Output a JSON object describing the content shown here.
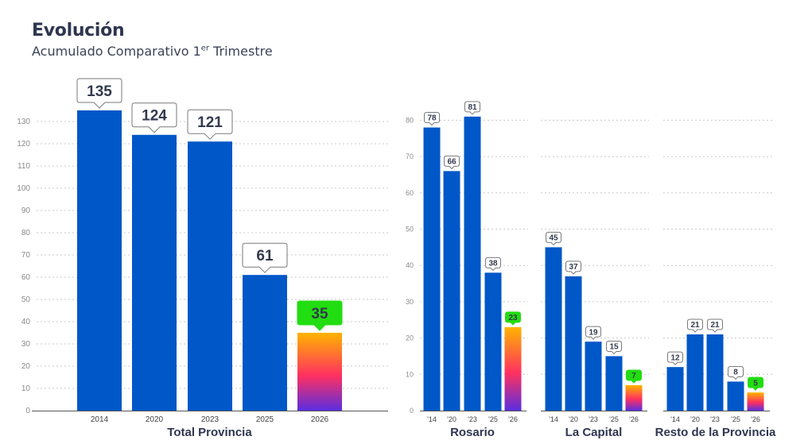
{
  "header": {
    "title": "Evolución",
    "subtitle_pre": "Acumulado Comparativo 1",
    "subtitle_sup": "er",
    "subtitle_post": " Trimestre"
  },
  "colors": {
    "bar": "#0057c8",
    "grid": "#c9c9c9",
    "axis": "#555555",
    "tick": "#8a8a8a",
    "label_border": "#7a7a7a",
    "label_text": "#333a4d",
    "highlight_label_bg": "#22dd11",
    "gradient_top": "#ffb400",
    "gradient_mid": "#ff3060",
    "gradient_bottom": "#5a2ee0"
  },
  "chart_data": [
    {
      "type": "bar",
      "id": "total",
      "xlabel": "Total Provincia",
      "categories": [
        "2014",
        "2020",
        "2023",
        "2025",
        "2026"
      ],
      "values": [
        135,
        124,
        121,
        61,
        35
      ],
      "ylim": [
        0,
        130
      ],
      "yticks": [
        0,
        10,
        20,
        30,
        40,
        50,
        60,
        70,
        80,
        90,
        100,
        110,
        120,
        130
      ],
      "highlight": "2026"
    },
    {
      "type": "bar",
      "id": "rosario",
      "xlabel": "Rosario",
      "categories": [
        "'14",
        "'20",
        "'23",
        "'25",
        "'26"
      ],
      "values": [
        78,
        66,
        81,
        38,
        23
      ],
      "ylim": [
        0,
        80
      ],
      "yticks": [
        0,
        10,
        20,
        30,
        40,
        50,
        60,
        70,
        80
      ],
      "highlight": "'26"
    },
    {
      "type": "bar",
      "id": "capital",
      "xlabel": "La Capital",
      "categories": [
        "'14",
        "'20",
        "'23",
        "'25",
        "'26"
      ],
      "values": [
        45,
        37,
        19,
        15,
        7
      ],
      "ylim": [
        0,
        80
      ],
      "highlight": "'26"
    },
    {
      "type": "bar",
      "id": "resto",
      "xlabel": "Resto de la Provincia",
      "categories": [
        "'14",
        "'20",
        "'23",
        "'25",
        "'26"
      ],
      "values": [
        12,
        21,
        21,
        8,
        5
      ],
      "ylim": [
        0,
        80
      ],
      "highlight": "'26"
    }
  ]
}
